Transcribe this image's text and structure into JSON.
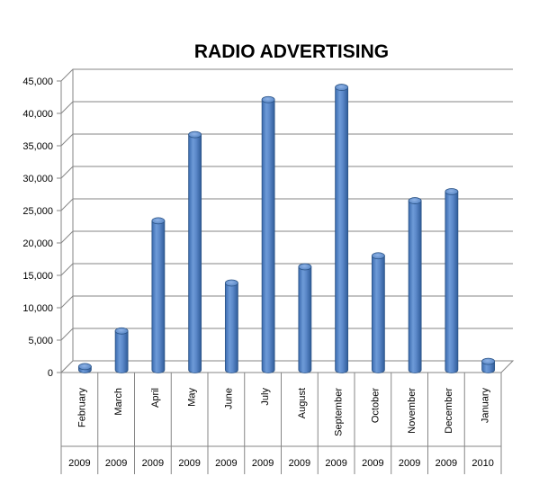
{
  "chart_data": {
    "type": "bar",
    "title": "RADIO ADVERTISING",
    "xlabel": "",
    "ylabel": "",
    "ylim": [
      0,
      45000
    ],
    "yticks": [
      "0",
      "5,000",
      "10,000",
      "15,000",
      "20,000",
      "25,000",
      "30,000",
      "35,000",
      "40,000",
      "45,000"
    ],
    "grid": true,
    "legend": "none",
    "categories": [
      {
        "month": "February",
        "year": "2009"
      },
      {
        "month": "March",
        "year": "2009"
      },
      {
        "month": "April",
        "year": "2009"
      },
      {
        "month": "May",
        "year": "2009"
      },
      {
        "month": "June",
        "year": "2009"
      },
      {
        "month": "July",
        "year": "2009"
      },
      {
        "month": "August",
        "year": "2009"
      },
      {
        "month": "September",
        "year": "2009"
      },
      {
        "month": "October",
        "year": "2009"
      },
      {
        "month": "November",
        "year": "2009"
      },
      {
        "month": "December",
        "year": "2009"
      },
      {
        "month": "January",
        "year": "2010"
      }
    ],
    "values": [
      500,
      6000,
      23000,
      36300,
      13400,
      41700,
      15900,
      43600,
      17600,
      26100,
      27500,
      1300
    ],
    "bar_color": "#4F81BD"
  }
}
